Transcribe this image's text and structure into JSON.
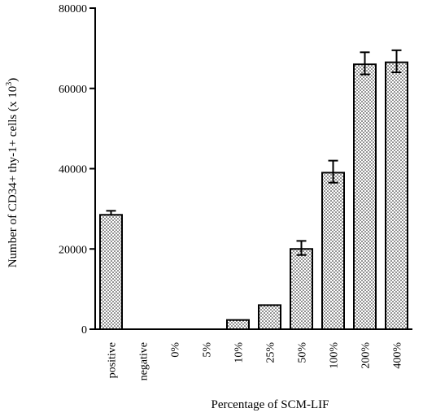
{
  "chart_data": {
    "type": "bar",
    "title": "",
    "xlabel": "Percentage of SCM-LIF",
    "ylabel": "Number of CD34+ thy-1+ cells  (x 10",
    "ylabel_sup": "3",
    "ylabel_suffix": ")",
    "ylim": [
      0,
      80000
    ],
    "yticks": [
      0,
      20000,
      40000,
      60000,
      80000
    ],
    "ytick_labels": [
      "0",
      "20000",
      "40000",
      "60000",
      "80000"
    ],
    "categories": [
      "positive",
      "negative",
      "0%",
      "5%",
      "10%",
      "25%",
      "50%",
      "100%",
      "200%",
      "400%"
    ],
    "values": [
      28500,
      0,
      0,
      0,
      2300,
      6000,
      20000,
      39000,
      66000,
      66500
    ],
    "error_upper": [
      1000,
      0,
      0,
      0,
      0,
      0,
      2000,
      3000,
      3000,
      3000
    ],
    "error_lower": [
      0,
      0,
      0,
      0,
      0,
      0,
      1500,
      2500,
      2500,
      2500
    ],
    "fill_pattern": "dotted",
    "grid": false,
    "legend": "none"
  }
}
